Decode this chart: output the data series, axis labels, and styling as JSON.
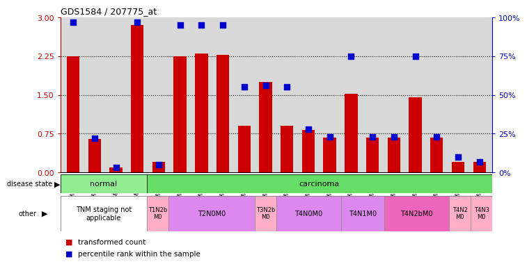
{
  "title": "GDS1584 / 207775_at",
  "samples": [
    "GSM80476",
    "GSM80477",
    "GSM80520",
    "GSM80521",
    "GSM80463",
    "GSM80460",
    "GSM80462",
    "GSM80465",
    "GSM80466",
    "GSM80472",
    "GSM80468",
    "GSM80469",
    "GSM80470",
    "GSM80473",
    "GSM80461",
    "GSM80464",
    "GSM80467",
    "GSM80471",
    "GSM80475",
    "GSM80474"
  ],
  "transformed_count": [
    2.25,
    0.65,
    0.1,
    2.85,
    0.2,
    2.25,
    2.3,
    2.28,
    0.9,
    1.75,
    0.9,
    0.82,
    0.68,
    1.52,
    0.68,
    0.68,
    1.45,
    0.68,
    0.2,
    0.2
  ],
  "percentile_rank": [
    97,
    22,
    3,
    97,
    5,
    95,
    95,
    95,
    55,
    56,
    55,
    28,
    23,
    75,
    23,
    23,
    75,
    23,
    10,
    7
  ],
  "ylim_left": [
    0,
    3
  ],
  "ylim_right": [
    0,
    100
  ],
  "yticks_left": [
    0,
    0.75,
    1.5,
    2.25,
    3
  ],
  "yticks_right": [
    0,
    25,
    50,
    75,
    100
  ],
  "other_groups": [
    {
      "label": "TNM staging not\napplicable",
      "start": 0,
      "end": 3,
      "color": "#FFFFFF"
    },
    {
      "label": "T1N2b\nM0",
      "start": 4,
      "end": 4,
      "color": "#FFB0C8"
    },
    {
      "label": "T2N0M0",
      "start": 5,
      "end": 8,
      "color": "#DD88EE"
    },
    {
      "label": "T3N2b\nM0",
      "start": 9,
      "end": 9,
      "color": "#FFB0C8"
    },
    {
      "label": "T4N0M0",
      "start": 10,
      "end": 12,
      "color": "#DD88EE"
    },
    {
      "label": "T4N1M0",
      "start": 13,
      "end": 14,
      "color": "#DD88EE"
    },
    {
      "label": "T4N2bM0",
      "start": 15,
      "end": 17,
      "color": "#EE66BB"
    },
    {
      "label": "T4N2\nM0",
      "start": 18,
      "end": 18,
      "color": "#FFB0C8"
    },
    {
      "label": "T4N3\nM0",
      "start": 19,
      "end": 19,
      "color": "#FFB0C8"
    }
  ],
  "bar_color": "#CC0000",
  "dot_color": "#0000CC",
  "axis_color_left": "#CC0000",
  "axis_color_right": "#0000CC",
  "normal_color": "#90EE90",
  "carcinoma_color": "#66DD66",
  "bg_color": "#FFFFFF"
}
